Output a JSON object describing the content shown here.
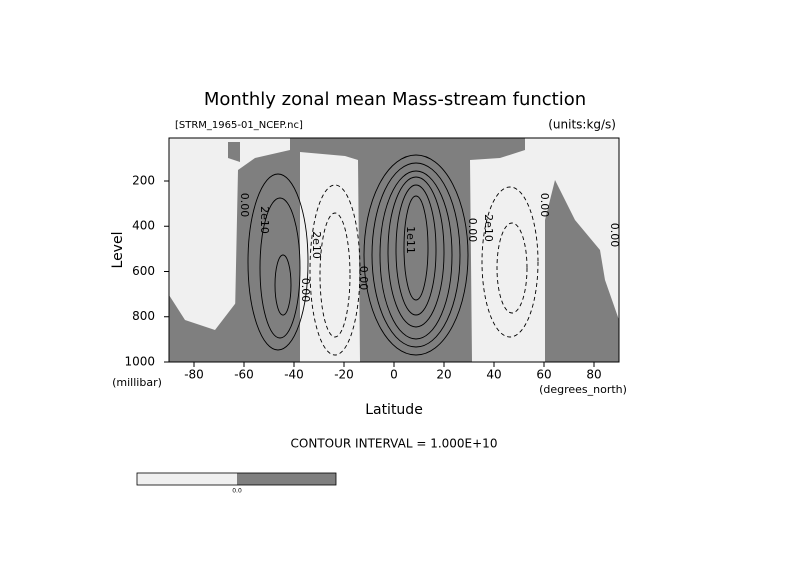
{
  "chart_data": {
    "type": "contour",
    "title": "Monthly zonal mean Mass-stream function",
    "subtitle_left": "[STRM_1965-01_NCEP.nc]",
    "subtitle_right": "(units:kg/s)",
    "x_label": "Latitude",
    "x_units": "(degrees_north)",
    "y_label": "Level",
    "y_units": "(millibar)",
    "xlim": [
      -90,
      90
    ],
    "xticks": [
      -80,
      -60,
      -40,
      -20,
      0,
      20,
      40,
      60,
      80
    ],
    "ylim": [
      1000,
      10
    ],
    "yticks": [
      200,
      400,
      600,
      800,
      1000
    ],
    "contour_interval": "CONTOUR INTERVAL = 1.000E+10",
    "contour_labels": [
      "0.00",
      "2e10",
      "2e10",
      "0.00",
      "0.00",
      "1e11",
      "0.00",
      "2e10",
      "0.00",
      "0.00"
    ],
    "colorbar_label": "0.0",
    "colors": {
      "negative": "#f0f0f0",
      "positive": "#7f7f7f"
    }
  }
}
